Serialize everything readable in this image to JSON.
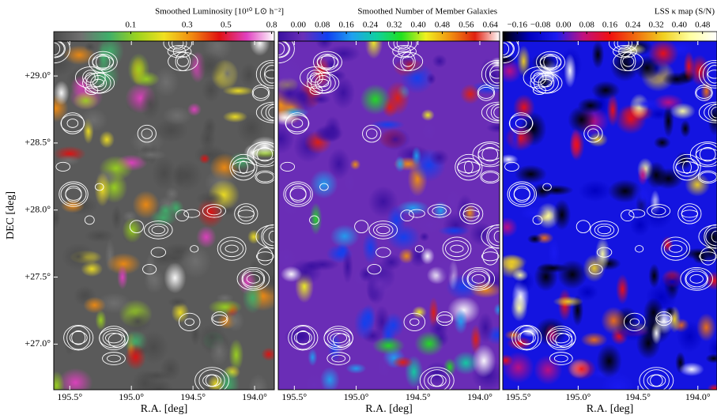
{
  "chart_data": [
    {
      "type": "heatmap",
      "colorbar_label": "Smoothed Luminosity [10¹⁰ L⊙ h⁻²]",
      "clim": [
        0,
        0.82
      ],
      "cscale": "sqrt",
      "cticks": [
        0.1,
        0.3,
        0.5,
        0.8
      ],
      "colormap": [
        "#4a4a4a",
        "#707070",
        "#3fae6a",
        "#9ad21e",
        "#f0e020",
        "#f08a10",
        "#e01010",
        "#e040c0",
        "#ffffff"
      ],
      "background": "#5a5a5a",
      "xlabel": "R.A. [deg]",
      "xlim": [
        195.63,
        193.84
      ],
      "xticks": [
        {
          "value": 195.5,
          "label": "195.5°"
        },
        {
          "value": 195.0,
          "label": "195.0°"
        },
        {
          "value": 194.5,
          "label": "194.5°"
        },
        {
          "value": 194.0,
          "label": "194.0°"
        }
      ],
      "ylabel": "DEC [deg]",
      "ylim": [
        26.66,
        29.26
      ],
      "yticks": [
        {
          "value": 29.0,
          "label": "+29.0°"
        },
        {
          "value": 28.5,
          "label": "+28.5°"
        },
        {
          "value": 28.0,
          "label": "+28.0°"
        },
        {
          "value": 27.5,
          "label": "+27.5°"
        },
        {
          "value": 27.0,
          "label": "+27.0°"
        }
      ]
    },
    {
      "type": "heatmap",
      "colorbar_label": "Smoothed Number of Member Galaxies",
      "clim": [
        -0.067,
        0.671
      ],
      "cscale": "linear",
      "cticks": [
        {
          "value": 0,
          "label": "0.00"
        },
        {
          "value": 0.08,
          "label": "0.08"
        },
        {
          "value": 0.16,
          "label": "0.16"
        },
        {
          "value": 0.24,
          "label": "0.24"
        },
        {
          "value": 0.32,
          "label": "0.32"
        },
        {
          "value": 0.4,
          "label": "0.40"
        },
        {
          "value": 0.48,
          "label": "0.48"
        },
        {
          "value": 0.56,
          "label": "0.56"
        },
        {
          "value": 0.64,
          "label": "0.64"
        }
      ],
      "colormap": [
        "#3a10a0",
        "#6a2fb8",
        "#1040f0",
        "#20a0f0",
        "#10d0a0",
        "#20e020",
        "#f0f020",
        "#f09010",
        "#e02010",
        "#ffffff"
      ],
      "background": "#6a2db6",
      "xlabel": "R.A. [deg]",
      "xlim": [
        195.63,
        193.84
      ],
      "xticks": [
        {
          "value": 195.5,
          "label": "195.5°"
        },
        {
          "value": 195.0,
          "label": "195.0°"
        },
        {
          "value": 194.5,
          "label": "194.5°"
        },
        {
          "value": 194.0,
          "label": "194.0°"
        }
      ],
      "ylim": [
        26.66,
        29.26
      ]
    },
    {
      "type": "heatmap",
      "colorbar_label": "LSS κ map (S/N)",
      "clim": [
        -0.21,
        0.53
      ],
      "cscale": "linear",
      "cticks": [
        {
          "value": -0.16,
          "label": "−0.16"
        },
        {
          "value": -0.08,
          "label": "−0.08"
        },
        {
          "value": 0,
          "label": "0.00"
        },
        {
          "value": 0.08,
          "label": "0.08"
        },
        {
          "value": 0.16,
          "label": "0.16"
        },
        {
          "value": 0.24,
          "label": "0.24"
        },
        {
          "value": 0.32,
          "label": "0.32"
        },
        {
          "value": 0.4,
          "label": "0.40"
        },
        {
          "value": 0.48,
          "label": "0.48"
        }
      ],
      "colormap": [
        "#000000",
        "#0000c0",
        "#1a1af0",
        "#c01080",
        "#f01010",
        "#f07010",
        "#f0d020",
        "#ffffa0",
        "#ffffff"
      ],
      "background": "#1414e0",
      "xlabel": "R.A. [deg]",
      "xlim": [
        195.63,
        193.84
      ],
      "xticks": [
        {
          "value": 195.5,
          "label": "195.5°"
        },
        {
          "value": 195.0,
          "label": "195.0°"
        },
        {
          "value": 194.5,
          "label": "194.5°"
        },
        {
          "value": 194.0,
          "label": "194.0°"
        }
      ],
      "ylim": [
        26.66,
        29.26
      ]
    }
  ]
}
